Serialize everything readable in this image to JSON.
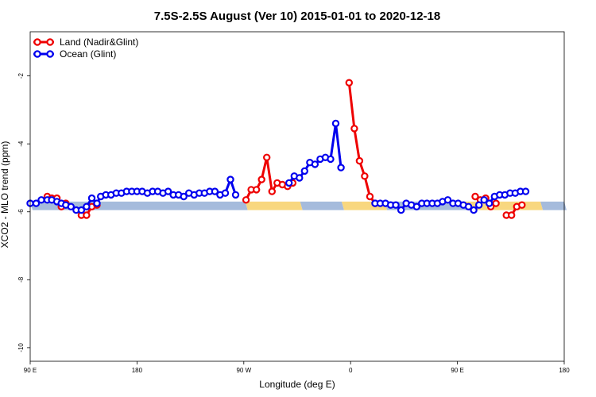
{
  "chart_data": {
    "type": "line",
    "title": "7.5S-2.5S August (Ver 10)   2015-01-01 to 2020-12-18",
    "xlabel": "Longitude (deg E)",
    "ylabel": "XCO2 - MLO trend (ppm)",
    "xlim": [
      90,
      450
    ],
    "ylim": [
      -10.4,
      -0.7
    ],
    "x_ticks": [
      {
        "value": 90,
        "label": "90 E"
      },
      {
        "value": 162,
        "label": "180"
      },
      {
        "value": 234,
        "label": "90 W"
      },
      {
        "value": 306,
        "label": "0"
      },
      {
        "value": 378,
        "label": "90 E"
      },
      {
        "value": 450,
        "label": "180"
      }
    ],
    "y_ticks": [
      {
        "value": -2,
        "label": "-2"
      },
      {
        "value": -4,
        "label": "-4"
      },
      {
        "value": -6,
        "label": "-6"
      },
      {
        "value": -8,
        "label": "-8"
      },
      {
        "value": -10,
        "label": "-10"
      }
    ],
    "grid": false,
    "legend_position": "top-left",
    "surface_band": {
      "y_range": [
        -5.95,
        -5.7
      ],
      "segments": [
        {
          "type": "ocean",
          "x_range": [
            90,
            235
          ]
        },
        {
          "type": "land",
          "x_range": [
            235,
            272
          ]
        },
        {
          "type": "ocean",
          "x_range": [
            272,
            300
          ]
        },
        {
          "type": "land",
          "x_range": [
            300,
            329
          ]
        },
        {
          "type": "ocean",
          "x_range": [
            329,
            383
          ]
        },
        {
          "type": "land",
          "x_range": [
            383,
            434
          ]
        },
        {
          "type": "ocean",
          "x_range": [
            434,
            450
          ]
        }
      ]
    },
    "series": [
      {
        "name": "Land (Nadir&Glint)",
        "color": "#ee0000",
        "segments": [
          [
            [
              101.5,
              -5.55
            ],
            [
              104.5,
              -5.6
            ],
            [
              108,
              -5.6
            ]
          ],
          [
            [
              111,
              -5.85
            ],
            [
              114,
              -5.75
            ]
          ],
          [
            [
              124.5,
              -6.1
            ],
            [
              128,
              -6.1
            ],
            [
              131.5,
              -5.85
            ],
            [
              135,
              -5.8
            ]
          ],
          [
            [
              235.5,
              -5.65
            ],
            [
              239,
              -5.35
            ],
            [
              242.5,
              -5.35
            ],
            [
              246,
              -5.05
            ],
            [
              249.5,
              -4.4
            ],
            [
              253,
              -5.4
            ],
            [
              256.5,
              -5.15
            ],
            [
              260,
              -5.2
            ],
            [
              263.5,
              -5.25
            ],
            [
              267,
              -5.15
            ]
          ],
          [
            [
              305,
              -2.2
            ],
            [
              308.5,
              -3.55
            ],
            [
              312,
              -4.5
            ],
            [
              315.5,
              -4.95
            ],
            [
              319,
              -5.55
            ],
            [
              322.5,
              -5.75
            ]
          ],
          [
            [
              390,
              -5.55
            ],
            [
              393.5,
              -5.65
            ],
            [
              397,
              -5.6
            ],
            [
              400.5,
              -5.85
            ],
            [
              404,
              -5.75
            ]
          ],
          [
            [
              411,
              -6.1
            ],
            [
              414.5,
              -6.1
            ],
            [
              418,
              -5.85
            ],
            [
              421.5,
              -5.8
            ]
          ]
        ]
      },
      {
        "name": "Ocean (Glint)",
        "color": "#0000ee",
        "segments": [
          [
            [
              90,
              -5.75
            ],
            [
              94,
              -5.75
            ],
            [
              97.5,
              -5.65
            ],
            [
              101.5,
              -5.65
            ],
            [
              104.5,
              -5.65
            ],
            [
              108,
              -5.7
            ],
            [
              111,
              -5.75
            ],
            [
              114,
              -5.8
            ],
            [
              117.5,
              -5.85
            ],
            [
              121,
              -5.95
            ],
            [
              124.5,
              -5.95
            ],
            [
              128,
              -5.85
            ],
            [
              131.5,
              -5.6
            ],
            [
              135,
              -5.75
            ],
            [
              137.5,
              -5.55
            ],
            [
              141,
              -5.5
            ],
            [
              144.5,
              -5.5
            ],
            [
              148,
              -5.45
            ],
            [
              151.5,
              -5.45
            ],
            [
              155,
              -5.4
            ],
            [
              158.5,
              -5.4
            ],
            [
              162,
              -5.4
            ],
            [
              165.5,
              -5.4
            ],
            [
              169,
              -5.45
            ],
            [
              172.5,
              -5.4
            ],
            [
              176,
              -5.4
            ],
            [
              179.5,
              -5.45
            ],
            [
              183,
              -5.4
            ],
            [
              186.5,
              -5.5
            ],
            [
              190,
              -5.5
            ],
            [
              193.5,
              -5.55
            ],
            [
              197,
              -5.45
            ],
            [
              200.5,
              -5.5
            ],
            [
              204,
              -5.45
            ],
            [
              207.5,
              -5.45
            ],
            [
              211,
              -5.4
            ],
            [
              214.5,
              -5.4
            ],
            [
              218,
              -5.5
            ],
            [
              221.5,
              -5.45
            ],
            [
              225,
              -5.05
            ],
            [
              228.5,
              -5.5
            ]
          ],
          [
            [
              264.5,
              -5.15
            ],
            [
              268,
              -4.95
            ],
            [
              271.5,
              -5.0
            ],
            [
              275,
              -4.8
            ],
            [
              278.5,
              -4.55
            ],
            [
              282,
              -4.6
            ],
            [
              285.5,
              -4.45
            ],
            [
              289,
              -4.4
            ],
            [
              292.5,
              -4.45
            ],
            [
              296,
              -3.4
            ],
            [
              299.5,
              -4.7
            ]
          ],
          [
            [
              322.5,
              -5.75
            ],
            [
              326,
              -5.75
            ],
            [
              329.5,
              -5.75
            ],
            [
              333,
              -5.8
            ],
            [
              336.5,
              -5.8
            ],
            [
              340,
              -5.95
            ],
            [
              343.5,
              -5.75
            ],
            [
              347,
              -5.8
            ],
            [
              350.5,
              -5.85
            ],
            [
              354,
              -5.75
            ],
            [
              357.5,
              -5.75
            ],
            [
              361,
              -5.75
            ],
            [
              364.5,
              -5.75
            ],
            [
              368,
              -5.7
            ],
            [
              371.5,
              -5.65
            ],
            [
              375,
              -5.75
            ],
            [
              378.5,
              -5.75
            ],
            [
              382,
              -5.8
            ],
            [
              385.5,
              -5.85
            ],
            [
              389,
              -5.95
            ],
            [
              392.5,
              -5.8
            ],
            [
              396,
              -5.65
            ],
            [
              399.5,
              -5.75
            ],
            [
              403,
              -5.55
            ],
            [
              406.5,
              -5.5
            ],
            [
              410,
              -5.5
            ],
            [
              413.5,
              -5.45
            ],
            [
              417,
              -5.45
            ],
            [
              420.5,
              -5.4
            ],
            [
              424,
              -5.4
            ]
          ]
        ]
      }
    ]
  }
}
